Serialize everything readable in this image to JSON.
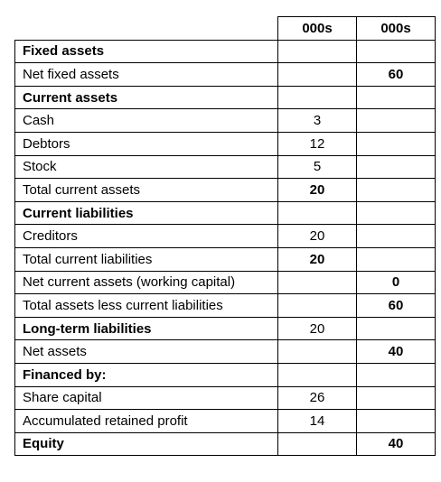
{
  "header": {
    "col1": "000s",
    "col2": "000s"
  },
  "rows": [
    {
      "label": "Fixed assets",
      "c1": "",
      "c2": "",
      "bold_label": true,
      "bold_c1": false,
      "bold_c2": false
    },
    {
      "label": "Net fixed assets",
      "c1": "",
      "c2": "60",
      "bold_label": false,
      "bold_c1": false,
      "bold_c2": true
    },
    {
      "label": "Current assets",
      "c1": "",
      "c2": "",
      "bold_label": true,
      "bold_c1": false,
      "bold_c2": false
    },
    {
      "label": "Cash",
      "c1": "3",
      "c2": "",
      "bold_label": false,
      "bold_c1": false,
      "bold_c2": false
    },
    {
      "label": "Debtors",
      "c1": "12",
      "c2": "",
      "bold_label": false,
      "bold_c1": false,
      "bold_c2": false
    },
    {
      "label": "Stock",
      "c1": "5",
      "c2": "",
      "bold_label": false,
      "bold_c1": false,
      "bold_c2": false
    },
    {
      "label": "Total current assets",
      "c1": "20",
      "c2": "",
      "bold_label": false,
      "bold_c1": true,
      "bold_c2": false
    },
    {
      "label": "Current liabilities",
      "c1": "",
      "c2": "",
      "bold_label": true,
      "bold_c1": false,
      "bold_c2": false
    },
    {
      "label": "Creditors",
      "c1": "20",
      "c2": "",
      "bold_label": false,
      "bold_c1": false,
      "bold_c2": false
    },
    {
      "label": "Total current liabilities",
      "c1": "20",
      "c2": "",
      "bold_label": false,
      "bold_c1": true,
      "bold_c2": false
    },
    {
      "label": "Net current assets (working capital)",
      "c1": "",
      "c2": "0",
      "bold_label": false,
      "bold_c1": false,
      "bold_c2": true
    },
    {
      "label": "Total assets less current liabilities",
      "c1": "",
      "c2": "60",
      "bold_label": false,
      "bold_c1": false,
      "bold_c2": true
    },
    {
      "label": "Long-term liabilities",
      "c1": "20",
      "c2": "",
      "bold_label": true,
      "bold_c1": false,
      "bold_c2": false
    },
    {
      "label": "Net assets",
      "c1": "",
      "c2": "40",
      "bold_label": false,
      "bold_c1": false,
      "bold_c2": true
    },
    {
      "label": "Financed by:",
      "c1": "",
      "c2": "",
      "bold_label": true,
      "bold_c1": false,
      "bold_c2": false
    },
    {
      "label": "Share capital",
      "c1": "26",
      "c2": "",
      "bold_label": false,
      "bold_c1": false,
      "bold_c2": false
    },
    {
      "label": "Accumulated retained profit",
      "c1": "14",
      "c2": "",
      "bold_label": false,
      "bold_c1": false,
      "bold_c2": false
    },
    {
      "label": "Equity",
      "c1": "",
      "c2": "40",
      "bold_label": true,
      "bold_c1": false,
      "bold_c2": true
    }
  ]
}
